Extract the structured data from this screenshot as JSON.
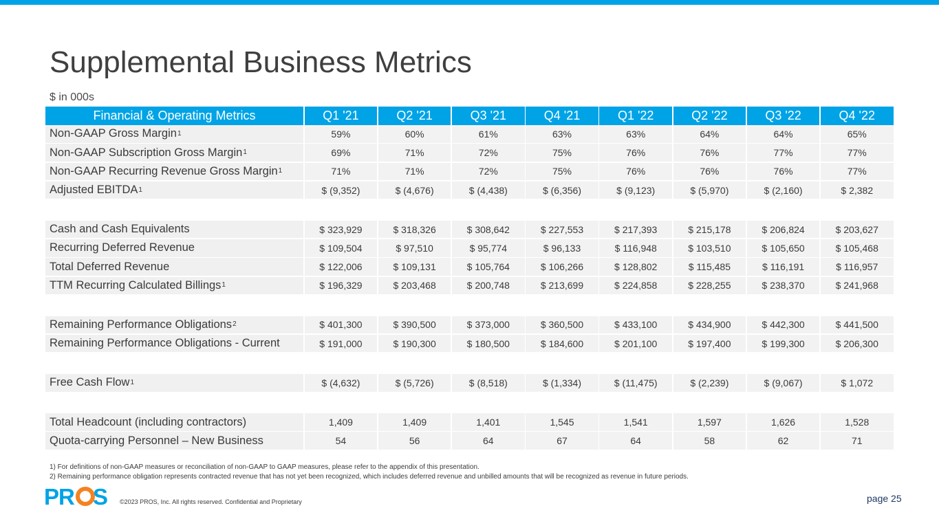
{
  "title": "Supplemental Business Metrics",
  "subtitle": "$ in 000s",
  "table": {
    "header": {
      "label": "Financial & Operating Metrics",
      "columns": [
        "Q1 '21",
        "Q2 '21",
        "Q3 '21",
        "Q4 '21",
        "Q1 '22",
        "Q2 '22",
        "Q3 '22",
        "Q4 '22"
      ]
    },
    "groups": [
      [
        {
          "label": "Non-GAAP Gross Margin",
          "fn": "1",
          "values": [
            "59%",
            "60%",
            "61%",
            "63%",
            "63%",
            "64%",
            "64%",
            "65%"
          ]
        },
        {
          "label": "Non-GAAP Subscription Gross Margin",
          "fn": "1",
          "values": [
            "69%",
            "71%",
            "72%",
            "75%",
            "76%",
            "76%",
            "77%",
            "77%"
          ]
        },
        {
          "label": "Non-GAAP Recurring Revenue Gross Margin",
          "fn": "1",
          "values": [
            "71%",
            "71%",
            "72%",
            "75%",
            "76%",
            "76%",
            "76%",
            "77%"
          ]
        },
        {
          "label": "Adjusted EBITDA",
          "fn": "1",
          "values": [
            "$ (9,352)",
            "$ (4,676)",
            "$ (4,438)",
            "$ (6,356)",
            "$ (9,123)",
            "$ (5,970)",
            "$ (2,160)",
            "$ 2,382"
          ]
        }
      ],
      [
        {
          "label": "Cash and Cash Equivalents",
          "fn": "",
          "values": [
            "$ 323,929",
            "$ 318,326",
            "$ 308,642",
            "$ 227,553",
            "$ 217,393",
            "$ 215,178",
            "$ 206,824",
            "$ 203,627"
          ]
        },
        {
          "label": "Recurring Deferred Revenue",
          "fn": "",
          "values": [
            "$ 109,504",
            "$ 97,510",
            "$ 95,774",
            "$ 96,133",
            "$ 116,948",
            "$ 103,510",
            "$ 105,650",
            "$ 105,468"
          ]
        },
        {
          "label": "Total Deferred Revenue",
          "fn": "",
          "values": [
            "$ 122,006",
            "$ 109,131",
            "$ 105,764",
            "$ 106,266",
            "$ 128,802",
            "$ 115,485",
            "$ 116,191",
            "$ 116,957"
          ]
        },
        {
          "label": "TTM Recurring Calculated Billings",
          "fn": "1",
          "values": [
            "$ 196,329",
            "$ 203,468",
            "$ 200,748",
            "$ 213,699",
            "$ 224,858",
            "$ 228,255",
            "$ 238,370",
            "$ 241,968"
          ]
        }
      ],
      [
        {
          "label": "Remaining Performance Obligations",
          "fn": "2",
          "values": [
            "$ 401,300",
            "$ 390,500",
            "$ 373,000",
            "$ 360,500",
            "$ 433,100",
            "$ 434,900",
            "$ 442,300",
            "$ 441,500"
          ]
        },
        {
          "label": "Remaining Performance Obligations - Current",
          "fn": "",
          "values": [
            "$ 191,000",
            "$ 190,300",
            "$ 180,500",
            "$ 184,600",
            "$ 201,100",
            "$ 197,400",
            "$ 199,300",
            "$ 206,300"
          ]
        }
      ],
      [
        {
          "label": "Free Cash Flow",
          "fn": "1",
          "values": [
            "$ (4,632)",
            "$ (5,726)",
            "$ (8,518)",
            "$ (1,334)",
            "$ (11,475)",
            "$ (2,239)",
            "$ (9,067)",
            "$ 1,072"
          ]
        }
      ],
      [
        {
          "label": "Total Headcount (including contractors)",
          "fn": "",
          "values": [
            "1,409",
            "1,409",
            "1,401",
            "1,545",
            "1,541",
            "1,597",
            "1,626",
            "1,528"
          ]
        },
        {
          "label": "Quota-carrying Personnel – New Business",
          "fn": "",
          "values": [
            "54",
            "56",
            "64",
            "67",
            "64",
            "58",
            "62",
            "71"
          ]
        }
      ]
    ]
  },
  "footnotes": [
    "1) For definitions of non-GAAP measures or reconciliation of non-GAAP to GAAP measures, please refer to the appendix of this presentation.",
    "2) Remaining performance obligation represents contracted revenue that has not yet been recognized, which includes deferred revenue and unbilled amounts that will be recognized as revenue in future periods."
  ],
  "footer": {
    "logo_text": "PROS",
    "copyright": "©2023 PROS, Inc. All rights reserved. Confidential and Proprietary",
    "page": "page 25"
  },
  "colors": {
    "accent": "#00a3e6",
    "logo_orange": "#f58220",
    "row_bg": "#f2f2f2"
  }
}
